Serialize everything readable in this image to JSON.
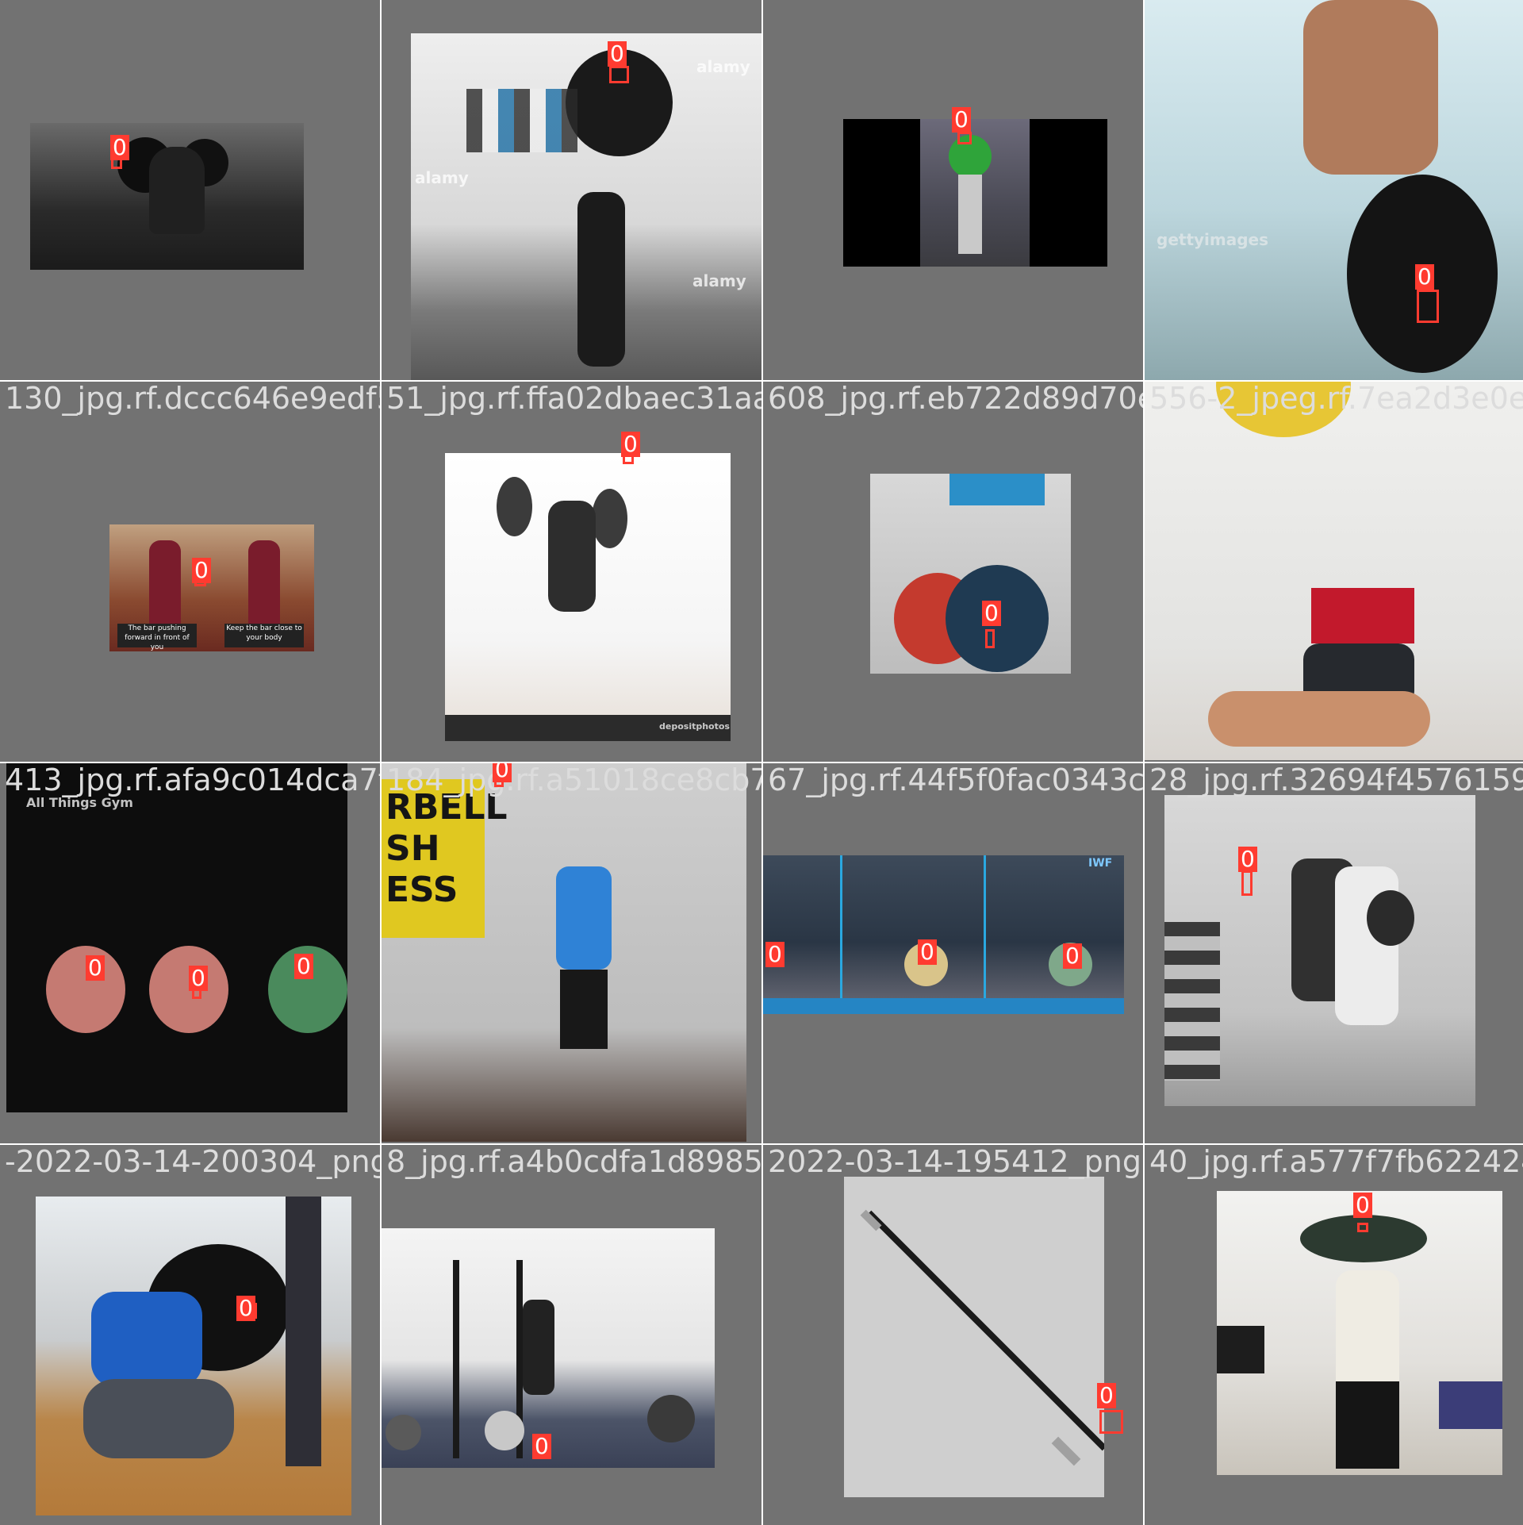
{
  "mosaic": {
    "class_label": "0",
    "filenames": [
      "130_jpg.rf.dccc646e9edf50b",
      "51_jpg.rf.ffa02dbaec31aa76d",
      "608_jpg.rf.eb722d89d70ed51c4",
      "556-2_jpeg.rf.7ea2d3e0e1f1d",
      "413_jpg.rf.afa9c014dca7faaa",
      "184_jpg.rf.a51018ce8cb7950",
      "67_jpg.rf.44f5f0fac0343c3501",
      "28_jpg.rf.32694f4576159ca8f6424",
      "-2022-03-14-200304_png_jpg",
      "8_jpg.rf.a4b0cdfa1d8985298",
      "2022-03-14-195412_png.rf.a2",
      "40_jpg.rf.a577f7fb6224242b"
    ],
    "watermarks": {
      "alamy": "alamy",
      "getty": "gettyimages",
      "iwf": "IWF",
      "gym": "All Things Gym",
      "deposit": "depositphotos",
      "caption_left": "The bar pushing forward in front of you",
      "caption_right": "Keep the bar close to your body",
      "barbell_sign": "RBELL SH ESS"
    }
  }
}
